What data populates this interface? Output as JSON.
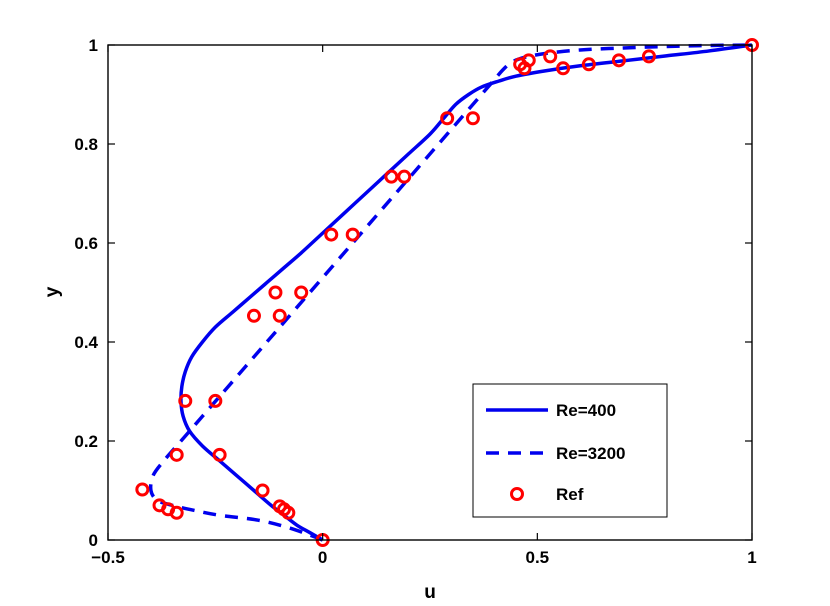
{
  "chart_data": {
    "type": "line",
    "title": "",
    "xlabel": "u",
    "ylabel": "y",
    "xlim": [
      -0.5,
      1
    ],
    "ylim": [
      0,
      1
    ],
    "xticks": [
      -0.5,
      0,
      0.5,
      1
    ],
    "xtick_labels": [
      "−0.5",
      "0",
      "0.5",
      "1"
    ],
    "yticks": [
      0,
      0.2,
      0.4,
      0.6,
      0.8,
      1
    ],
    "ytick_labels": [
      "0",
      "0.2",
      "0.4",
      "0.6",
      "0.8",
      "1"
    ],
    "grid": false,
    "legend_position": "bottom-right",
    "colors": {
      "line": "#0000ee",
      "marker": "#ff0000",
      "axes": "#000000"
    },
    "series": [
      {
        "name": "Re=400",
        "style": "solid",
        "x": [
          0,
          -0.03,
          -0.06,
          -0.09,
          -0.12,
          -0.16,
          -0.2,
          -0.24,
          -0.28,
          -0.31,
          -0.325,
          -0.33,
          -0.328,
          -0.32,
          -0.305,
          -0.28,
          -0.25,
          -0.21,
          -0.17,
          -0.13,
          -0.09,
          -0.05,
          0,
          0.05,
          0.1,
          0.15,
          0.2,
          0.25,
          0.28,
          0.31,
          0.34,
          0.37,
          0.41,
          0.45,
          0.52,
          0.6,
          0.7,
          0.8,
          0.9,
          1
        ],
        "y": [
          0,
          0.015,
          0.03,
          0.05,
          0.07,
          0.1,
          0.13,
          0.16,
          0.19,
          0.22,
          0.25,
          0.28,
          0.31,
          0.34,
          0.37,
          0.4,
          0.43,
          0.46,
          0.49,
          0.52,
          0.55,
          0.58,
          0.62,
          0.66,
          0.7,
          0.74,
          0.78,
          0.82,
          0.85,
          0.88,
          0.9,
          0.915,
          0.927,
          0.937,
          0.948,
          0.958,
          0.968,
          0.978,
          0.988,
          1
        ]
      },
      {
        "name": "Re=3200",
        "style": "dashed",
        "x": [
          0,
          -0.03,
          -0.08,
          -0.15,
          -0.24,
          -0.3,
          -0.35,
          -0.385,
          -0.4,
          -0.395,
          -0.37,
          -0.33,
          -0.28,
          -0.23,
          -0.18,
          -0.13,
          -0.08,
          -0.03,
          0.02,
          0.07,
          0.12,
          0.17,
          0.22,
          0.27,
          0.32,
          0.37,
          0.4,
          0.42,
          0.44,
          0.47,
          0.52,
          0.6,
          0.7,
          0.8,
          0.9,
          1
        ],
        "y": [
          0,
          0.01,
          0.025,
          0.04,
          0.05,
          0.06,
          0.07,
          0.08,
          0.1,
          0.13,
          0.16,
          0.2,
          0.25,
          0.3,
          0.35,
          0.4,
          0.45,
          0.5,
          0.55,
          0.6,
          0.65,
          0.7,
          0.75,
          0.8,
          0.85,
          0.9,
          0.93,
          0.95,
          0.965,
          0.975,
          0.983,
          0.99,
          0.994,
          0.997,
          0.999,
          1
        ]
      },
      {
        "name": "Ref",
        "style": "markers",
        "x": [
          0,
          -0.08,
          -0.09,
          -0.1,
          -0.14,
          -0.24,
          -0.34,
          -0.32,
          -0.16,
          -0.11,
          0.02,
          0.16,
          0.29,
          0.47,
          0.48,
          0.53,
          0.56,
          0.62,
          0.69,
          0.76,
          1,
          -0.34,
          -0.36,
          -0.38,
          -0.42,
          -0.25,
          -0.1,
          -0.05,
          0.07,
          0.19,
          0.35,
          0.46
        ],
        "y": [
          0,
          0.055,
          0.062,
          0.068,
          0.1,
          0.172,
          0.172,
          0.281,
          0.453,
          0.5,
          0.617,
          0.734,
          0.852,
          0.953,
          0.969,
          0.977,
          0.953,
          0.961,
          0.969,
          0.977,
          1,
          0.055,
          0.062,
          0.07,
          0.102,
          0.281,
          0.453,
          0.5,
          0.617,
          0.734,
          0.852,
          0.961
        ]
      }
    ]
  }
}
